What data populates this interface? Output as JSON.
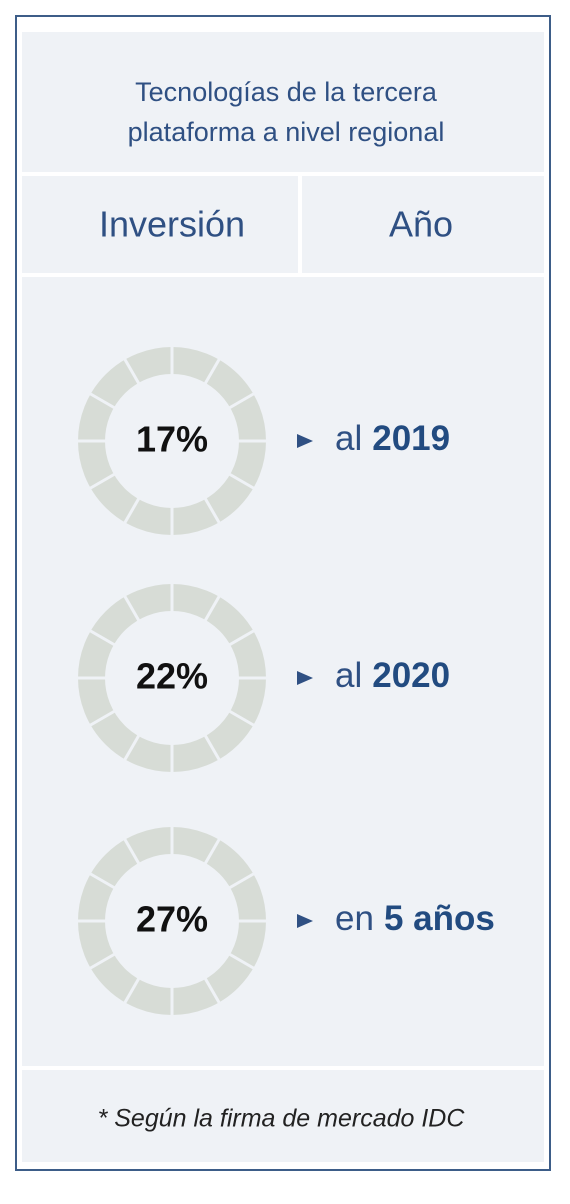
{
  "header": {
    "title_lines": [
      "Tecnologías de la tercera",
      "plataforma a nivel regional"
    ]
  },
  "table": {
    "columns": [
      "Inversión",
      "Año"
    ],
    "rows": [
      {
        "percent": "17%",
        "prefix": "al",
        "emphasis": "2019"
      },
      {
        "percent": "22%",
        "prefix": "al",
        "emphasis": "2020"
      },
      {
        "percent": "27%",
        "prefix": "en",
        "emphasis": "5 años"
      }
    ]
  },
  "footnote": "* Según la firma de mercado IDC"
}
